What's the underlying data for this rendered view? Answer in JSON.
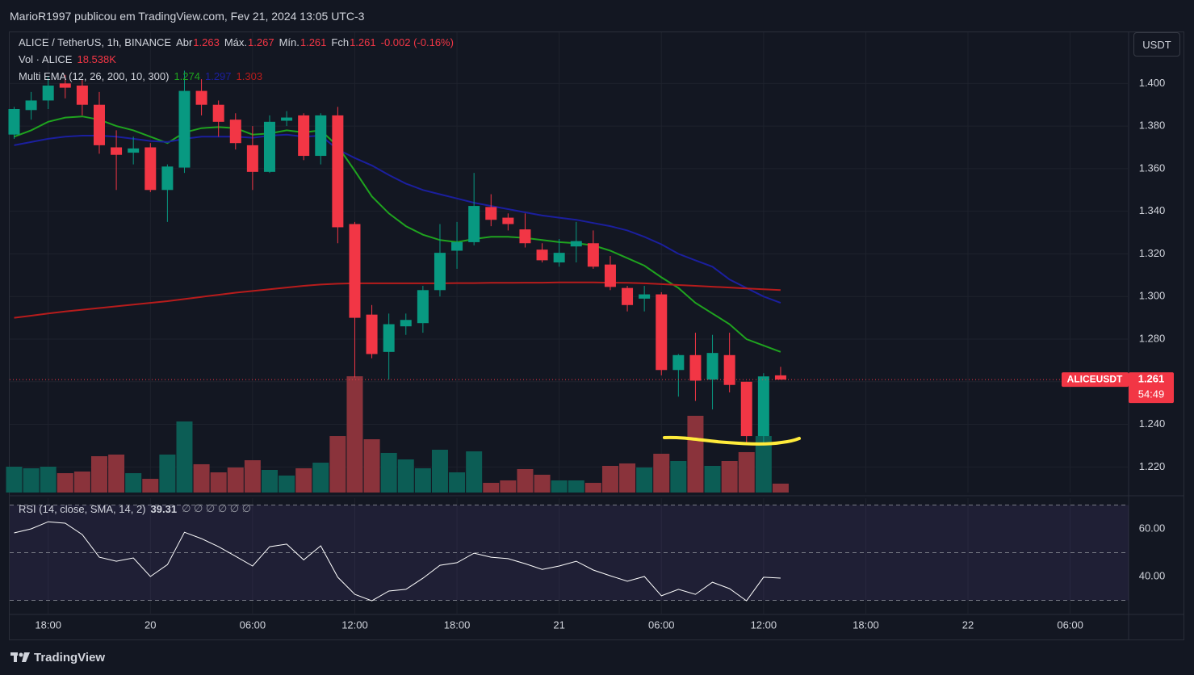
{
  "header": {
    "publisher": "MarioR1997 publicou em TradingView.com, Fev 21, 2024 13:05 UTC-3",
    "currency_button": "USDT",
    "brand": "TradingView"
  },
  "chart_data": [
    {
      "type": "candlestick",
      "title": "ALICE / TetherUS, 1h, BINANCE",
      "ohlc_readout": [
        {
          "label": "Abr",
          "value": 1.263
        },
        {
          "label": "Máx.",
          "value": 1.267
        },
        {
          "label": "Mín.",
          "value": 1.261
        },
        {
          "label": "Fch",
          "value": 1.261
        }
      ],
      "change_readout": "-0.002 (-0.16%)",
      "x": [
        0,
        1,
        2,
        3,
        4,
        5,
        6,
        7,
        8,
        9,
        10,
        11,
        12,
        13,
        14,
        15,
        16,
        17,
        18,
        19,
        20,
        21,
        22,
        23,
        24,
        25,
        26,
        27,
        28,
        29,
        30,
        31,
        32,
        33,
        34,
        35,
        36,
        37,
        38,
        39,
        40,
        41,
        42,
        43,
        44,
        45
      ],
      "open": [
        1.376,
        1.3875,
        1.392,
        1.4,
        1.399,
        1.39,
        1.37,
        1.3675,
        1.37,
        1.35,
        1.3605,
        1.3965,
        1.39,
        1.383,
        1.371,
        1.3585,
        1.3825,
        1.385,
        1.366,
        1.385,
        1.334,
        1.2915,
        1.274,
        1.286,
        1.2875,
        1.303,
        1.3215,
        1.3255,
        1.342,
        1.337,
        1.3315,
        1.322,
        1.316,
        1.3235,
        1.325,
        1.315,
        1.304,
        1.299,
        1.301,
        1.2655,
        1.2725,
        1.261,
        1.2725,
        1.26,
        1.2345,
        1.263
      ],
      "high": [
        1.389,
        1.396,
        1.403,
        1.404,
        1.402,
        1.396,
        1.378,
        1.375,
        1.372,
        1.362,
        1.406,
        1.402,
        1.392,
        1.386,
        1.38,
        1.385,
        1.387,
        1.386,
        1.386,
        1.389,
        1.335,
        1.296,
        1.292,
        1.292,
        1.305,
        1.334,
        1.335,
        1.358,
        1.348,
        1.339,
        1.339,
        1.325,
        1.327,
        1.335,
        1.331,
        1.319,
        1.305,
        1.305,
        1.302,
        1.273,
        1.283,
        1.282,
        1.283,
        1.26,
        1.264,
        1.267
      ],
      "low": [
        1.374,
        1.383,
        1.388,
        1.393,
        1.385,
        1.367,
        1.35,
        1.362,
        1.349,
        1.335,
        1.358,
        1.385,
        1.375,
        1.369,
        1.35,
        1.358,
        1.38,
        1.364,
        1.362,
        1.325,
        1.262,
        1.271,
        1.261,
        1.282,
        1.283,
        1.3,
        1.313,
        1.324,
        1.333,
        1.331,
        1.323,
        1.316,
        1.314,
        1.316,
        1.313,
        1.303,
        1.293,
        1.293,
        1.263,
        1.253,
        1.251,
        1.247,
        1.255,
        1.231,
        1.23,
        1.261
      ],
      "close": [
        1.388,
        1.392,
        1.399,
        1.398,
        1.39,
        1.371,
        1.3665,
        1.3695,
        1.35,
        1.361,
        1.3965,
        1.39,
        1.382,
        1.372,
        1.3585,
        1.382,
        1.384,
        1.366,
        1.385,
        1.3325,
        1.29,
        1.273,
        1.287,
        1.289,
        1.303,
        1.3205,
        1.3255,
        1.3425,
        1.336,
        1.334,
        1.325,
        1.317,
        1.3205,
        1.326,
        1.314,
        1.3045,
        1.296,
        1.301,
        1.2655,
        1.2725,
        1.2605,
        1.2735,
        1.2585,
        1.2345,
        1.2625,
        1.261
      ],
      "up_color": "#089981",
      "down_color": "#f23645",
      "volume_title": "Vol · ALICE",
      "volume_readout": "18.538K",
      "volume": [
        53.9,
        50.6,
        53.9,
        40.4,
        43.8,
        75.8,
        79.2,
        40.4,
        28.6,
        79.2,
        148.3,
        59.0,
        42.1,
        52.2,
        67.4,
        47.2,
        35.4,
        50.6,
        62.3,
        117.9,
        242.6,
        111.2,
        82.6,
        69.1,
        50.6,
        89.3,
        42.1,
        85.9,
        20.2,
        25.3,
        48.9,
        37.1,
        25.3,
        25.3,
        20.2,
        55.6,
        60.7,
        52.2,
        80.9,
        65.7,
        160.1,
        55.6,
        65.7,
        84.3,
        117.9,
        18.538
      ],
      "volume_up_color": "#0c5d55",
      "volume_down_color": "#8a333b",
      "ema_title": "Multi EMA (12, 26, 200, 10, 300)",
      "series": [
        {
          "color": "#1fa31f",
          "readout": 1.274,
          "values": [
            1.375,
            1.378,
            1.382,
            1.384,
            1.3845,
            1.383,
            1.38,
            1.378,
            1.375,
            1.372,
            1.377,
            1.379,
            1.3795,
            1.379,
            1.376,
            1.3765,
            1.378,
            1.377,
            1.378,
            1.3705,
            1.359,
            1.347,
            1.339,
            1.333,
            1.329,
            1.3265,
            1.3255,
            1.327,
            1.328,
            1.328,
            1.3275,
            1.3265,
            1.3255,
            1.325,
            1.324,
            1.3215,
            1.318,
            1.3145,
            1.309,
            1.304,
            1.297,
            1.292,
            1.287,
            1.28,
            1.277,
            1.274
          ]
        },
        {
          "color": "#1b1f9e",
          "readout": 1.297,
          "values": [
            1.371,
            1.3725,
            1.374,
            1.375,
            1.3755,
            1.3755,
            1.375,
            1.374,
            1.373,
            1.3725,
            1.374,
            1.375,
            1.375,
            1.375,
            1.3745,
            1.3755,
            1.376,
            1.375,
            1.3755,
            1.369,
            1.365,
            1.3615,
            1.357,
            1.353,
            1.35,
            1.348,
            1.346,
            1.344,
            1.3425,
            1.341,
            1.3395,
            1.338,
            1.337,
            1.336,
            1.3345,
            1.333,
            1.331,
            1.328,
            1.3245,
            1.32,
            1.317,
            1.314,
            1.308,
            1.304,
            1.3,
            1.297
          ]
        },
        {
          "color": "#b71c1c",
          "readout": 1.303,
          "values": [
            1.29,
            1.291,
            1.292,
            1.293,
            1.2938,
            1.2946,
            1.2954,
            1.2962,
            1.297,
            1.2978,
            1.2988,
            1.2998,
            1.3008,
            1.3018,
            1.3026,
            1.3034,
            1.3042,
            1.305,
            1.3056,
            1.306,
            1.3062,
            1.3062,
            1.3062,
            1.3062,
            1.3062,
            1.3062,
            1.3063,
            1.3063,
            1.3064,
            1.3064,
            1.3065,
            1.3065,
            1.3066,
            1.3066,
            1.3066,
            1.3065,
            1.3064,
            1.3062,
            1.3058,
            1.3054,
            1.305,
            1.3046,
            1.3042,
            1.3038,
            1.3034,
            1.303
          ]
        }
      ],
      "last_price": {
        "symbol": "ALICEUSDT",
        "value": 1.261,
        "countdown": "54:49"
      },
      "ylim": [
        1.208,
        1.424
      ],
      "yticks": [
        {
          "value": 1.22,
          "label": "1.220"
        },
        {
          "value": 1.24,
          "label": "1.240"
        },
        {
          "value": 1.26,
          "label": "1.260"
        },
        {
          "value": 1.28,
          "label": "1.280"
        },
        {
          "value": 1.3,
          "label": "1.300"
        },
        {
          "value": 1.32,
          "label": "1.320"
        },
        {
          "value": 1.34,
          "label": "1.340"
        },
        {
          "value": 1.36,
          "label": "1.360"
        },
        {
          "value": 1.38,
          "label": "1.380"
        },
        {
          "value": 1.4,
          "label": "1.400"
        }
      ],
      "xlim": [
        -0.26,
        65.43
      ],
      "xticks": [
        {
          "value": 2,
          "label": "18:00"
        },
        {
          "value": 8,
          "label": "20"
        },
        {
          "value": 14,
          "label": "06:00"
        },
        {
          "value": 20,
          "label": "12:00"
        },
        {
          "value": 26,
          "label": "18:00"
        },
        {
          "value": 32,
          "label": "21"
        },
        {
          "value": 38,
          "label": "06:00"
        },
        {
          "value": 44,
          "label": "12:00"
        },
        {
          "value": 50,
          "label": "18:00"
        },
        {
          "value": 56,
          "label": "22"
        },
        {
          "value": 62,
          "label": "06:00"
        }
      ],
      "grid": true
    },
    {
      "type": "line",
      "title": "RSI (14, close, SMA, 14, 2)",
      "readout": 39.31,
      "extra_readout": "∅ ∅ ∅ ∅ ∅ ∅",
      "color": "#ffffff",
      "values": [
        58.3,
        60,
        63,
        62.4,
        57.6,
        48.1,
        46.4,
        47.8,
        40,
        45,
        58.6,
        55.9,
        52.5,
        48.5,
        44.4,
        52.5,
        53.6,
        47,
        52.9,
        39.7,
        32.5,
        29.8,
        33.9,
        34.6,
        39.3,
        44.7,
        45.8,
        49.8,
        48.1,
        47.5,
        45.4,
        43,
        44.4,
        46.4,
        42.7,
        40.3,
        38,
        40,
        31.9,
        34.6,
        32.5,
        37.6,
        34.9,
        29.8,
        39.7,
        39.31
      ],
      "band_lines": [
        70,
        50,
        30
      ],
      "band_color": "#7e57c2",
      "ylim": [
        24.4,
        72.9
      ],
      "yticks": [
        {
          "value": 40,
          "label": "40.00"
        },
        {
          "value": 60,
          "label": "60.00"
        }
      ]
    }
  ]
}
